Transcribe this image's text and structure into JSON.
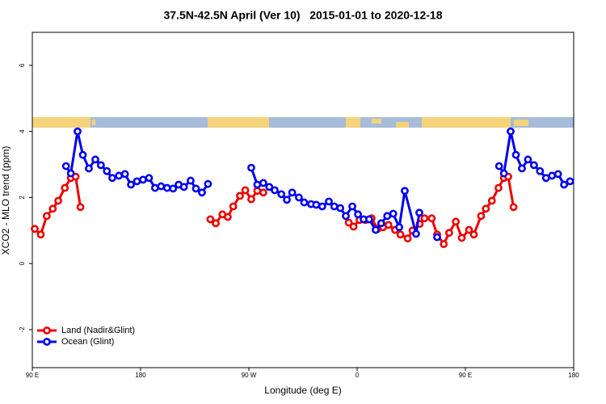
{
  "chart_data": {
    "type": "line",
    "title": "37.5N-42.5N April (Ver 10)   2015-01-01 to 2020-12-18",
    "xlabel": "Longitude (deg E)",
    "ylabel": "XCO2 - MLO trend (ppm)",
    "xlim": [
      90,
      540
    ],
    "xticks": [
      {
        "value": 90,
        "label": "90 E"
      },
      180,
      {
        "value": 270,
        "label": "90 W"
      },
      {
        "value": 360,
        "label": "0"
      },
      {
        "value": 450,
        "label": "90 E"
      },
      {
        "value": 540,
        "label": "180"
      }
    ],
    "ylim": [
      -3.15,
      7
    ],
    "yticks": [
      -2,
      0,
      2,
      4,
      6
    ],
    "legend": "bottomleft",
    "series": [
      {
        "name": "Land (Nadir&Glint)",
        "color": "#ee0000",
        "x": [
          92,
          97,
          102,
          107,
          111.5,
          117,
          122,
          126,
          130,
          null,
          238,
          242.5,
          248,
          252.5,
          257,
          262.6,
          267,
          272,
          277,
          282,
          null,
          353,
          357,
          362,
          367,
          372,
          377,
          381.5,
          386,
          391.5,
          396,
          402,
          406,
          412,
          416,
          422,
          426.5,
          432,
          436.5,
          442,
          447,
          453,
          457,
          463,
          467,
          472,
          477.5,
          482,
          485.6,
          490
        ],
        "values": [
          1.05,
          0.88,
          1.44,
          1.66,
          1.9,
          2.29,
          2.59,
          2.63,
          1.71,
          null,
          1.34,
          1.22,
          1.49,
          1.41,
          1.73,
          2.05,
          2.22,
          1.95,
          2.2,
          2.15,
          null,
          1.24,
          1.12,
          1.32,
          1.32,
          1.37,
          1.05,
          1.1,
          1.17,
          1.02,
          0.88,
          0.76,
          1.0,
          1.2,
          1.37,
          1.37,
          0.88,
          0.59,
          0.93,
          1.27,
          0.78,
          1.02,
          0.88,
          1.44,
          1.66,
          1.9,
          2.29,
          2.59,
          2.63,
          1.71
        ]
      },
      {
        "name": "Ocean (Glint)",
        "color": "#0000ee",
        "x": [
          118,
          122,
          127.6,
          132,
          137,
          142.4,
          147,
          152,
          156.5,
          162,
          167,
          172,
          177,
          182,
          187,
          192,
          197,
          202,
          207,
          211.6,
          216,
          221.6,
          226,
          231,
          236,
          null,
          272,
          277,
          282,
          287,
          291.5,
          297,
          301.6,
          306,
          311.6,
          316,
          321.7,
          326,
          331,
          336.5,
          341,
          346,
          350.6,
          356,
          360.7,
          365.4,
          370,
          375.4,
          380,
          385,
          390,
          395,
          399.6,
          409,
          411.7,
          null,
          426.5,
          null,
          478,
          482,
          487.6,
          492,
          497,
          502,
          507,
          512,
          517,
          522,
          527,
          532,
          537
        ],
        "values": [
          2.95,
          2.73,
          4.0,
          3.29,
          2.88,
          3.15,
          2.98,
          2.8,
          2.59,
          2.66,
          2.71,
          2.39,
          2.49,
          2.54,
          2.59,
          2.29,
          2.34,
          2.29,
          2.27,
          2.39,
          2.32,
          2.51,
          2.27,
          2.15,
          2.41,
          null,
          2.9,
          2.39,
          2.44,
          2.32,
          2.22,
          2.1,
          1.93,
          2.15,
          2.0,
          1.85,
          1.8,
          1.78,
          1.73,
          1.88,
          1.73,
          1.68,
          1.44,
          1.73,
          1.49,
          1.34,
          1.34,
          1.02,
          1.22,
          1.44,
          1.51,
          1.1,
          2.2,
          0.9,
          1.54,
          null,
          0.8,
          null,
          2.95,
          2.73,
          4.0,
          3.29,
          2.88,
          3.15,
          2.98,
          2.8,
          2.59,
          2.66,
          2.71,
          2.39,
          2.49
        ]
      }
    ]
  }
}
